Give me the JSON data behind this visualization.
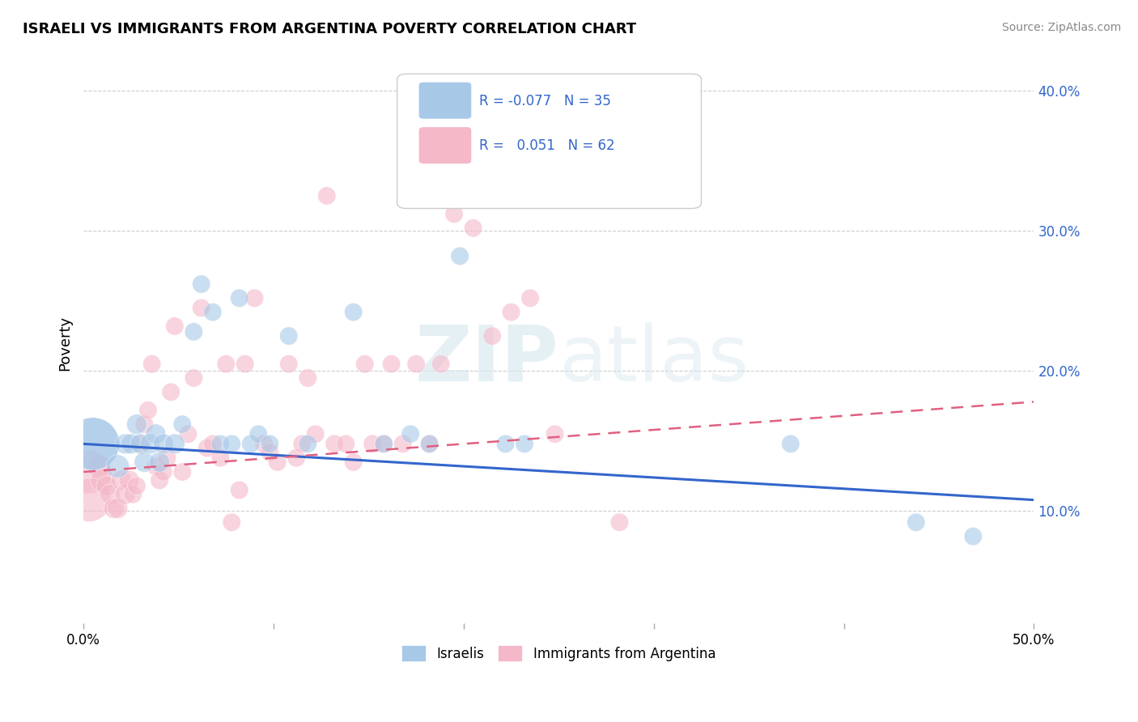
{
  "title": "ISRAELI VS IMMIGRANTS FROM ARGENTINA POVERTY CORRELATION CHART",
  "source": "Source: ZipAtlas.com",
  "ylabel": "Poverty",
  "watermark_zip": "ZIP",
  "watermark_atlas": "atlas",
  "xlim": [
    0.0,
    0.5
  ],
  "ylim": [
    0.02,
    0.42
  ],
  "yticks": [
    0.1,
    0.2,
    0.3,
    0.4
  ],
  "ytick_labels": [
    "10.0%",
    "20.0%",
    "30.0%",
    "40.0%"
  ],
  "xticks": [
    0.0,
    0.1,
    0.2,
    0.3,
    0.4,
    0.5
  ],
  "xtick_labels": [
    "0.0%",
    "",
    "",
    "",
    "",
    "50.0%"
  ],
  "color_blue": "#a8c8e8",
  "color_pink": "#f4b8c8",
  "color_blue_line": "#3366cc",
  "color_pink_line": "#e06080",
  "background": "#ffffff",
  "grid_color": "#c8c8c8",
  "israelis_x": [
    0.005,
    0.005,
    0.018,
    0.022,
    0.025,
    0.028,
    0.03,
    0.032,
    0.035,
    0.038,
    0.04,
    0.042,
    0.048,
    0.052,
    0.058,
    0.062,
    0.068,
    0.072,
    0.078,
    0.082,
    0.088,
    0.092,
    0.098,
    0.108,
    0.118,
    0.142,
    0.158,
    0.172,
    0.182,
    0.198,
    0.222,
    0.232,
    0.372,
    0.438,
    0.468
  ],
  "israelis_y": [
    0.148,
    0.148,
    0.132,
    0.148,
    0.148,
    0.162,
    0.148,
    0.135,
    0.148,
    0.155,
    0.135,
    0.148,
    0.148,
    0.162,
    0.228,
    0.262,
    0.242,
    0.148,
    0.148,
    0.252,
    0.148,
    0.155,
    0.148,
    0.225,
    0.148,
    0.242,
    0.148,
    0.155,
    0.148,
    0.282,
    0.148,
    0.148,
    0.148,
    0.092,
    0.082
  ],
  "argentina_x": [
    0.003,
    0.003,
    0.008,
    0.01,
    0.012,
    0.014,
    0.016,
    0.018,
    0.02,
    0.022,
    0.024,
    0.026,
    0.028,
    0.03,
    0.032,
    0.034,
    0.036,
    0.038,
    0.04,
    0.042,
    0.044,
    0.046,
    0.048,
    0.052,
    0.055,
    0.058,
    0.062,
    0.065,
    0.068,
    0.072,
    0.075,
    0.078,
    0.082,
    0.085,
    0.09,
    0.095,
    0.098,
    0.102,
    0.108,
    0.112,
    0.115,
    0.118,
    0.122,
    0.128,
    0.132,
    0.138,
    0.142,
    0.148,
    0.152,
    0.158,
    0.162,
    0.168,
    0.175,
    0.182,
    0.188,
    0.195,
    0.205,
    0.215,
    0.225,
    0.235,
    0.248,
    0.282
  ],
  "argentina_y": [
    0.128,
    0.108,
    0.132,
    0.122,
    0.118,
    0.112,
    0.102,
    0.102,
    0.122,
    0.112,
    0.122,
    0.112,
    0.118,
    0.148,
    0.162,
    0.172,
    0.205,
    0.132,
    0.122,
    0.128,
    0.138,
    0.185,
    0.232,
    0.128,
    0.155,
    0.195,
    0.245,
    0.145,
    0.148,
    0.138,
    0.205,
    0.092,
    0.115,
    0.205,
    0.252,
    0.148,
    0.142,
    0.135,
    0.205,
    0.138,
    0.148,
    0.195,
    0.155,
    0.325,
    0.148,
    0.148,
    0.135,
    0.205,
    0.148,
    0.148,
    0.205,
    0.148,
    0.205,
    0.148,
    0.205,
    0.312,
    0.302,
    0.225,
    0.242,
    0.252,
    0.155,
    0.092
  ],
  "israeli_line_x": [
    0.0,
    0.5
  ],
  "israeli_line_y": [
    0.148,
    0.108
  ],
  "arg_line_x": [
    0.0,
    0.5
  ],
  "arg_line_y": [
    0.128,
    0.178
  ]
}
